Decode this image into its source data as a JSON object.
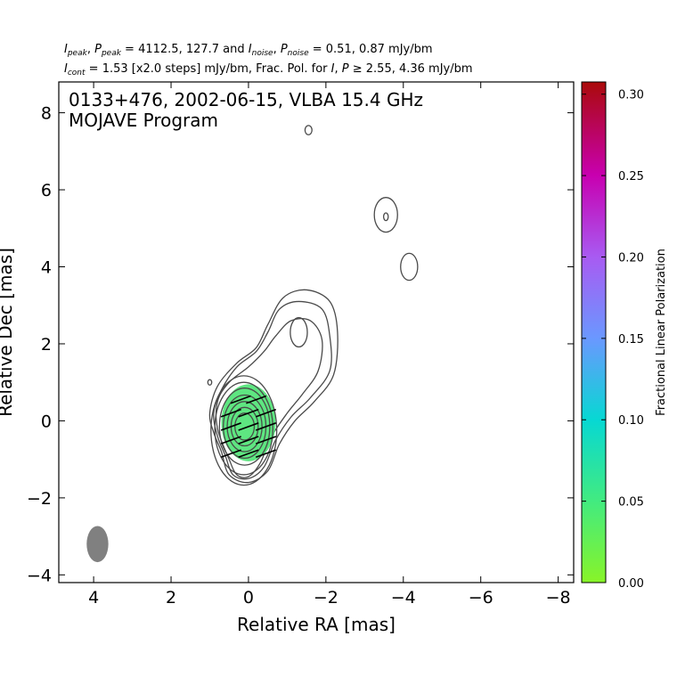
{
  "header": {
    "line1": {
      "i_peak_sym": "I",
      "i_peak_sub": "peak",
      "p_peak_sym": "P",
      "p_peak_sub": "peak",
      "peak_values": " = 4112.5, 127.7 and ",
      "i_noise_sym": "I",
      "i_noise_sub": "noise",
      "p_noise_sym": "P",
      "p_noise_sub": "noise",
      "noise_values": " = 0.51, 0.87 mJy/bm"
    },
    "line2": {
      "i_cont_sym": "I",
      "i_cont_sub": "cont",
      "cont_text": " = 1.53 [x2.0 steps] mJy/bm, Frac. Pol. for ",
      "i_sym": "I",
      "p_sym": "P",
      "threshold_text": " ≥ 2.55, 4.36 mJy/bm"
    }
  },
  "colors": {
    "contour": "#4a4a4a",
    "beam": "#808080",
    "evpa": "#000000",
    "polarization_fill": "#55e57a",
    "axes": "#000000"
  },
  "chart_data": {
    "type": "contour",
    "title": "0133+476, 2002-06-15, VLBA 15.4 GHz",
    "subtitle": "MOJAVE Program",
    "xlabel": "Relative RA [mas]",
    "ylabel": "Relative Dec [mas]",
    "xlim": [
      4.9,
      -8.4
    ],
    "ylim": [
      -4.2,
      8.8
    ],
    "xticks": [
      4,
      2,
      0,
      -2,
      -4,
      -6,
      -8
    ],
    "yticks": [
      -4,
      -2,
      0,
      2,
      4,
      6,
      8
    ],
    "xtick_labels": [
      "4",
      "2",
      "0",
      "−2",
      "−4",
      "−6",
      "−8"
    ],
    "ytick_labels": [
      "−4",
      "−2",
      "0",
      "2",
      "4",
      "6",
      "8"
    ],
    "core_contours": [
      {
        "x": 0.1,
        "y": -0.15,
        "rx": 0.25,
        "ry": 0.35
      },
      {
        "x": 0.1,
        "y": -0.15,
        "rx": 0.35,
        "ry": 0.5
      },
      {
        "x": 0.1,
        "y": -0.15,
        "rx": 0.45,
        "ry": 0.65
      },
      {
        "x": 0.1,
        "y": -0.15,
        "rx": 0.55,
        "ry": 0.82
      },
      {
        "x": 0.1,
        "y": -0.15,
        "rx": 0.65,
        "ry": 1.0
      },
      {
        "x": 0.12,
        "y": -0.2,
        "rx": 0.75,
        "ry": 1.2
      },
      {
        "x": 0.12,
        "y": -0.25,
        "rx": 0.85,
        "ry": 1.42
      }
    ],
    "jet_contours": [
      [
        [
          0.7,
          -0.8
        ],
        [
          0.5,
          -1.4
        ],
        [
          0.0,
          -1.6
        ],
        [
          -0.5,
          -1.3
        ],
        [
          -0.8,
          -0.6
        ],
        [
          -1.2,
          0.0
        ],
        [
          -1.7,
          0.5
        ],
        [
          -2.2,
          1.2
        ],
        [
          -2.3,
          2.3
        ],
        [
          -2.1,
          3.1
        ],
        [
          -1.5,
          3.4
        ],
        [
          -0.9,
          3.2
        ],
        [
          -0.5,
          2.5
        ],
        [
          -0.2,
          1.9
        ],
        [
          0.3,
          1.5
        ],
        [
          0.8,
          0.9
        ],
        [
          1.0,
          0.2
        ],
        [
          0.9,
          -0.3
        ]
      ],
      [
        [
          0.6,
          -0.9
        ],
        [
          0.4,
          -1.4
        ],
        [
          0.0,
          -1.5
        ],
        [
          -0.4,
          -1.2
        ],
        [
          -0.7,
          -0.5
        ],
        [
          -1.1,
          0.1
        ],
        [
          -1.6,
          0.6
        ],
        [
          -2.1,
          1.3
        ],
        [
          -2.1,
          2.2
        ],
        [
          -1.9,
          2.9
        ],
        [
          -1.3,
          3.1
        ],
        [
          -0.8,
          2.9
        ],
        [
          -0.5,
          2.3
        ],
        [
          -0.2,
          1.8
        ],
        [
          0.3,
          1.4
        ],
        [
          0.7,
          0.8
        ],
        [
          0.9,
          0.2
        ],
        [
          0.8,
          -0.4
        ]
      ],
      [
        [
          0.5,
          -1.0
        ],
        [
          0.3,
          -1.4
        ],
        [
          0.0,
          -1.45
        ],
        [
          -0.3,
          -1.1
        ],
        [
          -0.6,
          -0.4
        ],
        [
          -1.0,
          0.2
        ],
        [
          -1.4,
          0.7
        ],
        [
          -1.8,
          1.3
        ],
        [
          -1.9,
          2.1
        ],
        [
          -1.6,
          2.6
        ],
        [
          -1.1,
          2.6
        ],
        [
          -0.7,
          2.2
        ],
        [
          -0.4,
          1.8
        ],
        [
          0.0,
          1.4
        ],
        [
          0.5,
          1.0
        ],
        [
          0.8,
          0.5
        ],
        [
          0.8,
          -0.2
        ]
      ]
    ],
    "contours_small": [
      {
        "x": -1.3,
        "y": 2.3,
        "rx": 0.22,
        "ry": 0.38
      },
      {
        "x": -3.55,
        "y": 5.35,
        "rx": 0.3,
        "ry": 0.45
      },
      {
        "x": -3.55,
        "y": 5.3,
        "rx": 0.06,
        "ry": 0.1
      },
      {
        "x": -4.15,
        "y": 4.0,
        "rx": 0.22,
        "ry": 0.35
      },
      {
        "x": -1.55,
        "y": 7.55,
        "rx": 0.09,
        "ry": 0.12
      },
      {
        "x": 1.0,
        "y": 1.0,
        "rx": 0.05,
        "ry": 0.07
      }
    ],
    "polarization_region": {
      "x": 0.0,
      "y": -0.05,
      "rx": 0.7,
      "ry": 1.0,
      "fractional_pol": 0.04
    },
    "evpa_ticks": [
      {
        "x": 0.45,
        "y": -0.85
      },
      {
        "x": 0.0,
        "y": -0.85
      },
      {
        "x": -0.45,
        "y": -0.85
      },
      {
        "x": 0.45,
        "y": -0.5
      },
      {
        "x": 0.0,
        "y": -0.5
      },
      {
        "x": -0.45,
        "y": -0.5
      },
      {
        "x": 0.45,
        "y": -0.15
      },
      {
        "x": 0.0,
        "y": -0.15
      },
      {
        "x": -0.45,
        "y": -0.15
      },
      {
        "x": 0.45,
        "y": 0.2
      },
      {
        "x": 0.0,
        "y": 0.2
      },
      {
        "x": -0.45,
        "y": 0.2
      },
      {
        "x": 0.2,
        "y": 0.55
      },
      {
        "x": -0.2,
        "y": 0.55
      }
    ],
    "evpa_angle_deg": 20,
    "beam": {
      "x": 3.9,
      "y": -3.2,
      "rx": 0.28,
      "ry": 0.47
    },
    "colorbar": {
      "label": "Fractional Linear Polarization",
      "vmin": 0.0,
      "vmax": 0.3075,
      "ticks": [
        0.0,
        0.05,
        0.1,
        0.15,
        0.2,
        0.25,
        0.3
      ],
      "tick_labels": [
        "0.00",
        "0.05",
        "0.10",
        "0.15",
        "0.20",
        "0.25",
        "0.30"
      ],
      "stops": [
        {
          "v": 0.0,
          "color": "#88f428"
        },
        {
          "v": 0.05,
          "color": "#42eb80"
        },
        {
          "v": 0.1,
          "color": "#07d8d3"
        },
        {
          "v": 0.15,
          "color": "#6a98ff"
        },
        {
          "v": 0.2,
          "color": "#a85bf2"
        },
        {
          "v": 0.25,
          "color": "#c800b0"
        },
        {
          "v": 0.3075,
          "color": "#aa0a0a"
        }
      ]
    }
  }
}
